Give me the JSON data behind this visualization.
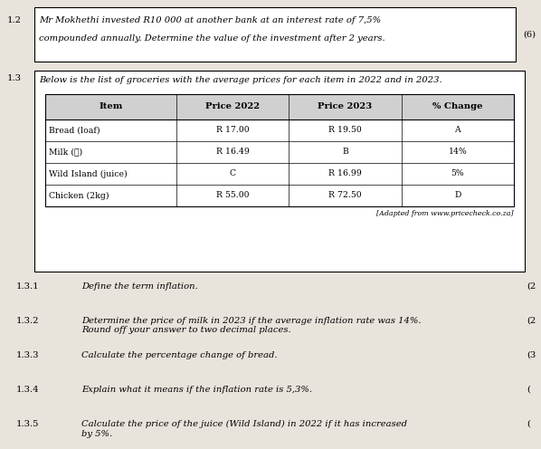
{
  "bg_color": "#e8e4dc",
  "section_12": {
    "label": "1.2",
    "text_line1": "Mr Mokhethi invested R10 000 at another bank at an interest rate of 7,5%",
    "text_line2": "compounded annually. Determine the value of the investment after 2 years.",
    "mark": "(6)"
  },
  "section_13": {
    "label": "1.3",
    "intro": "Below is the list of groceries with the average prices for each item in 2022 and in 2023.",
    "table": {
      "headers": [
        "Item",
        "Price 2022",
        "Price 2023",
        "% Change"
      ],
      "rows": [
        [
          "Bread (loaf)",
          "R 17.00",
          "R 19.50",
          "A"
        ],
        [
          "Milk (ℓ)",
          "R 16.49",
          "B",
          "14%"
        ],
        [
          "Wild Island (juice)",
          "C",
          "R 16.99",
          "5%"
        ],
        [
          "Chicken (2kg)",
          "R 55.00",
          "R 72.50",
          "D"
        ]
      ],
      "source": "[Adapted from www.pricecheck.co.za]"
    }
  },
  "questions": [
    {
      "num": "1.3.1",
      "text": "Define the term inflation.",
      "mark": "(2"
    },
    {
      "num": "1.3.2",
      "text": "Determine the price of milk in 2023 if the average inflation rate was 14%.\nRound off your answer to two decimal places.",
      "mark": "(2"
    },
    {
      "num": "1.3.3",
      "text": "Calculate the percentage change of bread.",
      "mark": "(3"
    },
    {
      "num": "1.3.4",
      "text": "Explain what it means if the inflation rate is 5,3%.",
      "mark": "("
    },
    {
      "num": "1.3.5",
      "text": "Calculate the price of the juice (Wild Island) in 2022 if it has increased\nby 5%.",
      "mark": "("
    }
  ],
  "font_family": "DejaVu Serif",
  "base_fs": 7.2
}
